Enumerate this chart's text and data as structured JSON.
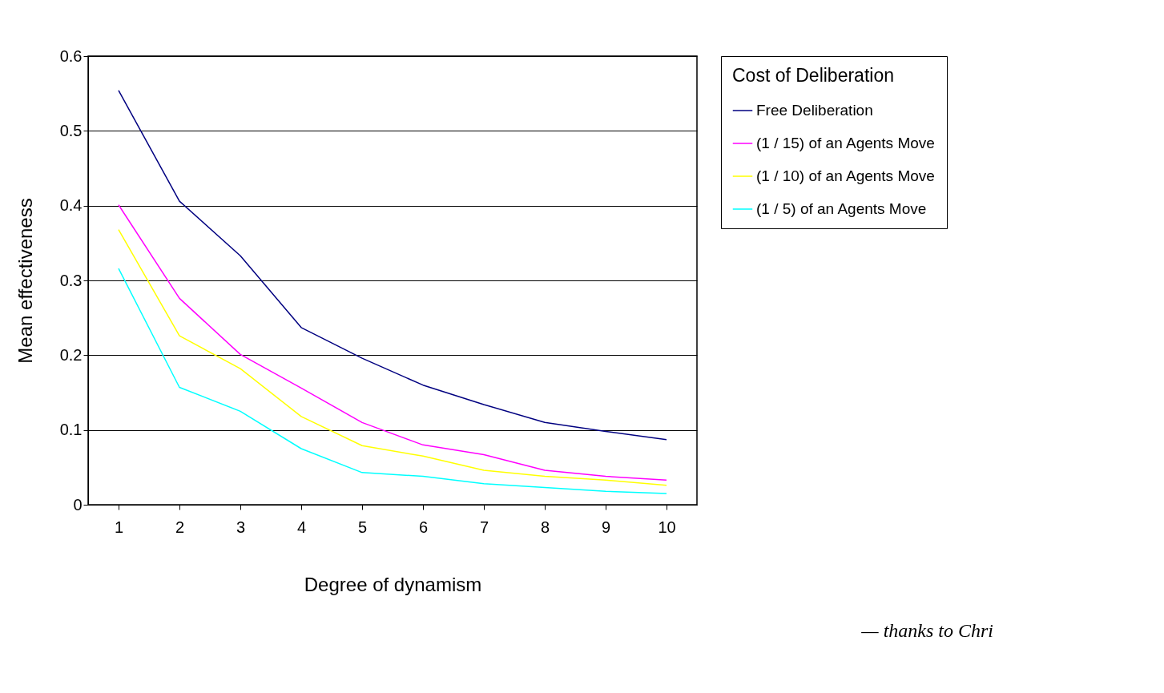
{
  "chart_data": {
    "type": "line",
    "xlabel": "Degree of dynamism",
    "ylabel": "Mean effectiveness",
    "legend_title": "Cost of Deliberation",
    "categories": [
      "1",
      "2",
      "3",
      "4",
      "5",
      "6",
      "7",
      "8",
      "9",
      "10"
    ],
    "series": [
      {
        "name": "Free Deliberation",
        "color": "#000080",
        "values": [
          0.554,
          0.406,
          0.333,
          0.237,
          0.196,
          0.16,
          0.134,
          0.11,
          0.098,
          0.087
        ]
      },
      {
        "name": "(1 / 15) of an Agents Move",
        "color": "#ff00ff",
        "values": [
          0.401,
          0.276,
          0.201,
          0.156,
          0.11,
          0.08,
          0.067,
          0.046,
          0.038,
          0.033
        ]
      },
      {
        "name": "(1 / 10) of an Agents Move",
        "color": "#ffff00",
        "values": [
          0.368,
          0.226,
          0.182,
          0.118,
          0.079,
          0.065,
          0.046,
          0.038,
          0.033,
          0.026
        ]
      },
      {
        "name": "(1 / 5) of an Agents Move",
        "color": "#00ffff",
        "values": [
          0.316,
          0.157,
          0.125,
          0.075,
          0.043,
          0.038,
          0.028,
          0.023,
          0.018,
          0.015
        ]
      }
    ],
    "ylim": [
      0,
      0.6
    ],
    "yticks": [
      0,
      0.1,
      0.2,
      0.3,
      0.4,
      0.5,
      0.6
    ],
    "grid": "y",
    "legend": "right",
    "marker": "none",
    "line_style": "solid",
    "annotations": [
      "— thanks to Chri"
    ]
  }
}
